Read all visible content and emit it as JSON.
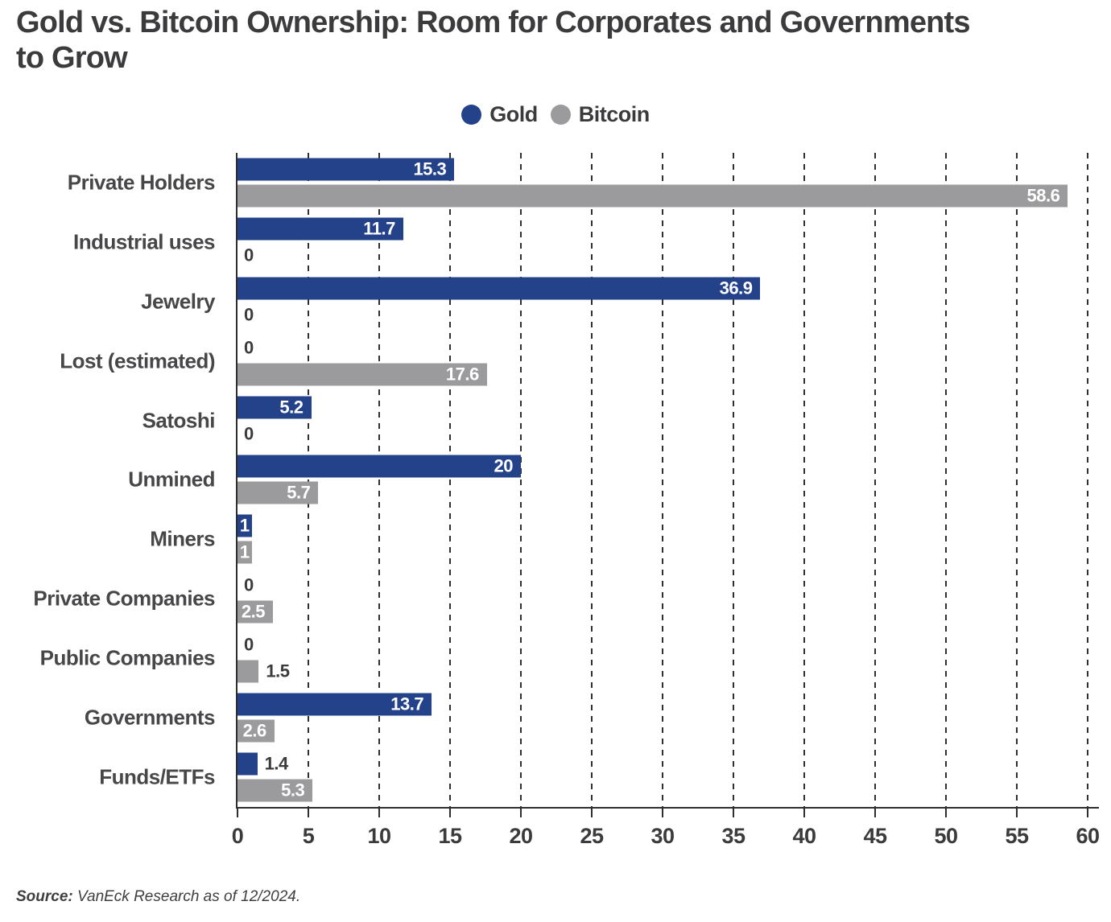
{
  "title": {
    "full": "Gold vs. Bitcoin Ownership: Room for Corporates and Governments to Grow",
    "line1": "Gold vs. Bitcoin Ownership: Room for Corporates and Governments",
    "line2": "to Grow"
  },
  "legend": [
    {
      "label": "Gold",
      "color": "#24428A"
    },
    {
      "label": "Bitcoin",
      "color": "#9B9B9D"
    }
  ],
  "colors": {
    "gold": "#24428A",
    "bitcoin": "#9B9B9D",
    "text_dark": "#3b3b3d",
    "category_label": "#47474a",
    "gridline": "#2f2f2f",
    "value_label_inside": "#ffffff"
  },
  "chart_data": {
    "type": "bar",
    "orientation": "horizontal",
    "title": "Gold vs. Bitcoin Ownership: Room for Corporates and Governments to Grow",
    "categories": [
      "Private Holders",
      "Industrial uses",
      "Jewelry",
      "Lost (estimated)",
      "Satoshi",
      "Unmined",
      "Miners",
      "Private Companies",
      "Public Companies",
      "Governments",
      "Funds/ETFs"
    ],
    "series": [
      {
        "name": "Gold",
        "color": "#24428A",
        "values": [
          15.3,
          11.7,
          36.9,
          0,
          5.2,
          20,
          1,
          0,
          0,
          13.7,
          1.4
        ]
      },
      {
        "name": "Bitcoin",
        "color": "#9B9B9D",
        "values": [
          58.6,
          0,
          0,
          17.6,
          0,
          5.7,
          1,
          2.5,
          1.5,
          2.6,
          5.3
        ]
      }
    ],
    "xlim": [
      0,
      60
    ],
    "xticks": [
      0,
      5,
      10,
      15,
      20,
      25,
      30,
      35,
      40,
      45,
      50,
      55,
      60
    ],
    "grid": "dashed-vertical",
    "legend_position": "top-center",
    "value_labels": "shown at end of each bar; white inside bar when it fits, dark outside otherwise"
  },
  "source": {
    "label": "Source:",
    "text": "VanEck Research as of 12/2024."
  }
}
